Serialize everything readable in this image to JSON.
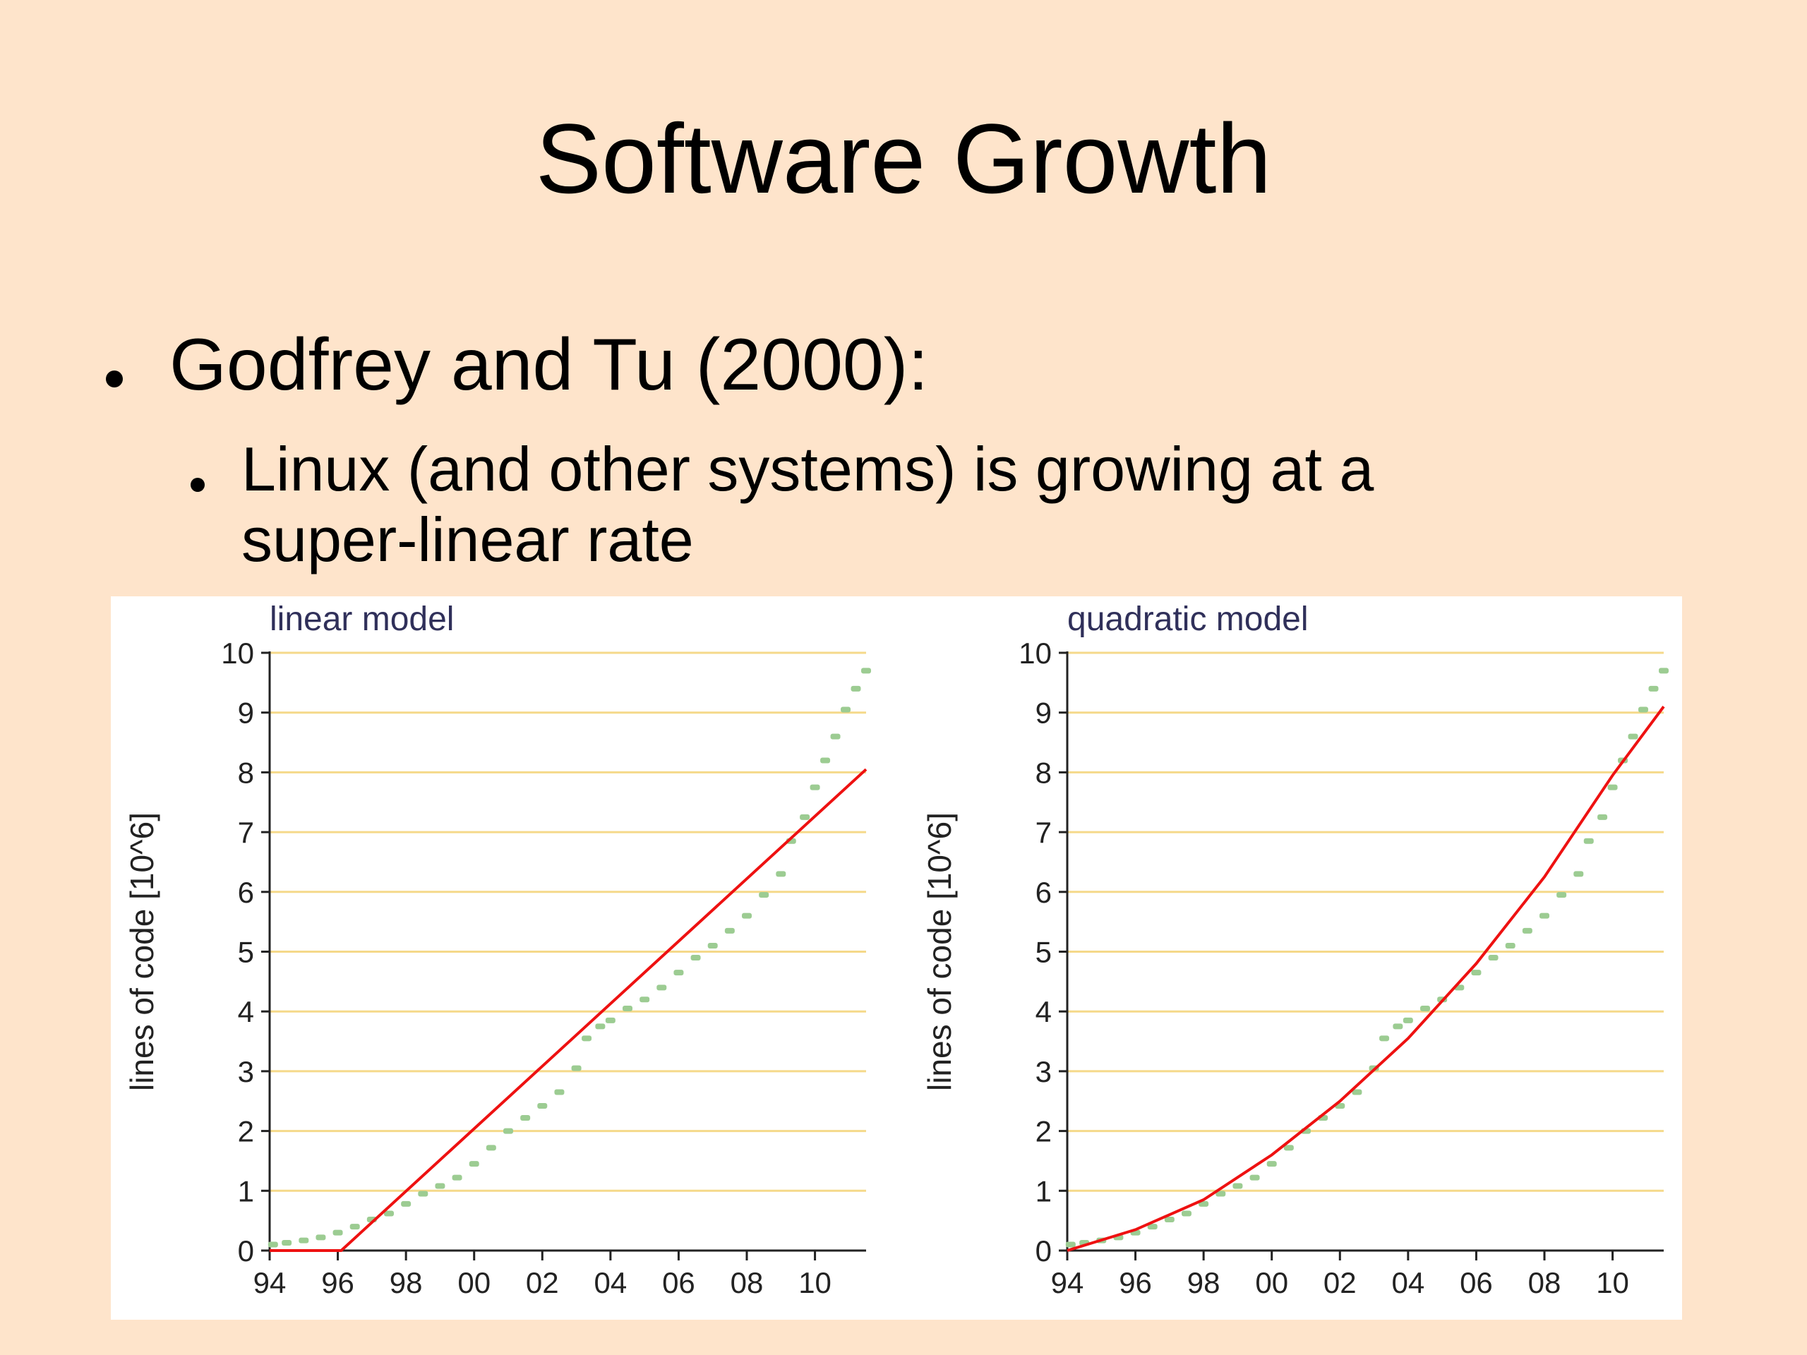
{
  "slide": {
    "title": "Software Growth",
    "bullet1": "Godfrey and Tu (2000):",
    "bullet2": "Linux (and other systems) is growing at a super-linear rate"
  },
  "colors": {
    "background": "#fee4cb",
    "gridline": "#f5d98a",
    "fit_line": "#ee1111",
    "data_points": "#9ccc92",
    "axis": "#222222"
  },
  "chart_data": [
    {
      "type": "scatter",
      "title": "linear model",
      "xlabel": "",
      "ylabel": "lines of code [10^6]",
      "xlim": [
        94,
        111.5
      ],
      "ylim": [
        0,
        10
      ],
      "x_ticks": [
        94,
        96,
        98,
        100,
        102,
        104,
        106,
        108,
        110
      ],
      "x_tick_labels": [
        "94",
        "96",
        "98",
        "00",
        "02",
        "04",
        "06",
        "08",
        "10"
      ],
      "y_ticks": [
        0,
        1,
        2,
        3,
        4,
        5,
        6,
        7,
        8,
        9,
        10
      ],
      "grid": "horizontal",
      "series": [
        {
          "role": "observed",
          "points": [
            [
              94.1,
              0.1
            ],
            [
              94.5,
              0.13
            ],
            [
              95,
              0.17
            ],
            [
              95.5,
              0.22
            ],
            [
              96,
              0.3
            ],
            [
              96.5,
              0.4
            ],
            [
              97,
              0.52
            ],
            [
              97.5,
              0.62
            ],
            [
              98,
              0.78
            ],
            [
              98.5,
              0.95
            ],
            [
              99,
              1.08
            ],
            [
              99.5,
              1.22
            ],
            [
              100,
              1.45
            ],
            [
              100.5,
              1.72
            ],
            [
              101,
              2.0
            ],
            [
              101.5,
              2.22
            ],
            [
              102,
              2.42
            ],
            [
              102.5,
              2.65
            ],
            [
              103,
              3.05
            ],
            [
              103.3,
              3.55
            ],
            [
              103.7,
              3.75
            ],
            [
              104,
              3.85
            ],
            [
              104.5,
              4.05
            ],
            [
              105,
              4.2
            ],
            [
              105.5,
              4.4
            ],
            [
              106,
              4.65
            ],
            [
              106.5,
              4.9
            ],
            [
              107,
              5.1
            ],
            [
              107.5,
              5.35
            ],
            [
              108,
              5.6
            ],
            [
              108.5,
              5.95
            ],
            [
              109,
              6.3
            ],
            [
              109.3,
              6.85
            ],
            [
              109.7,
              7.25
            ],
            [
              110,
              7.75
            ],
            [
              110.3,
              8.2
            ],
            [
              110.6,
              8.6
            ],
            [
              110.9,
              9.05
            ],
            [
              111.2,
              9.4
            ],
            [
              111.5,
              9.7
            ]
          ]
        },
        {
          "role": "fit",
          "points": [
            [
              94,
              0
            ],
            [
              96.1,
              0
            ],
            [
              111.5,
              8.05
            ]
          ]
        }
      ]
    },
    {
      "type": "scatter",
      "title": "quadratic model",
      "xlabel": "",
      "ylabel": "lines of code [10^6]",
      "xlim": [
        94,
        111.5
      ],
      "ylim": [
        0,
        10
      ],
      "x_ticks": [
        94,
        96,
        98,
        100,
        102,
        104,
        106,
        108,
        110
      ],
      "x_tick_labels": [
        "94",
        "96",
        "98",
        "00",
        "02",
        "04",
        "06",
        "08",
        "10"
      ],
      "y_ticks": [
        0,
        1,
        2,
        3,
        4,
        5,
        6,
        7,
        8,
        9,
        10
      ],
      "grid": "horizontal",
      "series": [
        {
          "role": "observed",
          "points": [
            [
              94.1,
              0.1
            ],
            [
              94.5,
              0.13
            ],
            [
              95,
              0.17
            ],
            [
              95.5,
              0.22
            ],
            [
              96,
              0.3
            ],
            [
              96.5,
              0.4
            ],
            [
              97,
              0.52
            ],
            [
              97.5,
              0.62
            ],
            [
              98,
              0.78
            ],
            [
              98.5,
              0.95
            ],
            [
              99,
              1.08
            ],
            [
              99.5,
              1.22
            ],
            [
              100,
              1.45
            ],
            [
              100.5,
              1.72
            ],
            [
              101,
              2.0
            ],
            [
              101.5,
              2.22
            ],
            [
              102,
              2.42
            ],
            [
              102.5,
              2.65
            ],
            [
              103,
              3.05
            ],
            [
              103.3,
              3.55
            ],
            [
              103.7,
              3.75
            ],
            [
              104,
              3.85
            ],
            [
              104.5,
              4.05
            ],
            [
              105,
              4.2
            ],
            [
              105.5,
              4.4
            ],
            [
              106,
              4.65
            ],
            [
              106.5,
              4.9
            ],
            [
              107,
              5.1
            ],
            [
              107.5,
              5.35
            ],
            [
              108,
              5.6
            ],
            [
              108.5,
              5.95
            ],
            [
              109,
              6.3
            ],
            [
              109.3,
              6.85
            ],
            [
              109.7,
              7.25
            ],
            [
              110,
              7.75
            ],
            [
              110.3,
              8.2
            ],
            [
              110.6,
              8.6
            ],
            [
              110.9,
              9.05
            ],
            [
              111.2,
              9.4
            ],
            [
              111.5,
              9.7
            ]
          ]
        },
        {
          "role": "fit",
          "points": [
            [
              94,
              0
            ],
            [
              96,
              0.35
            ],
            [
              98,
              0.85
            ],
            [
              100,
              1.6
            ],
            [
              102,
              2.5
            ],
            [
              104,
              3.55
            ],
            [
              106,
              4.8
            ],
            [
              108,
              6.25
            ],
            [
              110,
              7.95
            ],
            [
              111.5,
              9.1
            ]
          ]
        }
      ]
    }
  ]
}
